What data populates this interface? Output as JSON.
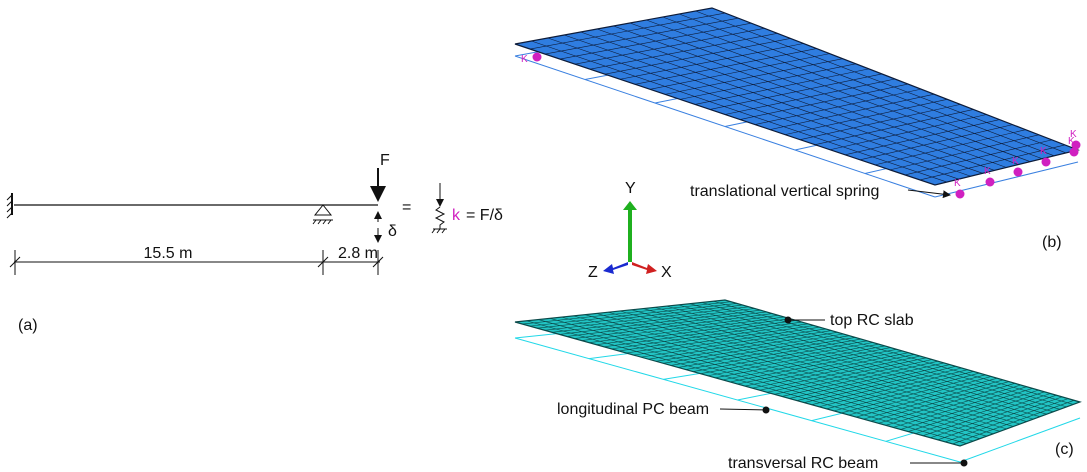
{
  "panel_a": {
    "label": "(a)",
    "force": "F",
    "deflection": "δ",
    "equals": "=",
    "stiffness_symbol": "k",
    "stiffness_formula": "= F/δ",
    "spans": [
      "15.5 m",
      "2.8 m"
    ]
  },
  "axes": {
    "y": "Y",
    "z": "Z",
    "x": "X"
  },
  "panel_b": {
    "label": "(b)",
    "spring_label": "K",
    "callout": "translational vertical spring"
  },
  "panel_c": {
    "label": "(c)",
    "callouts": [
      "top RC slab",
      "longitudinal PC beam",
      "transversal RC beam"
    ]
  }
}
